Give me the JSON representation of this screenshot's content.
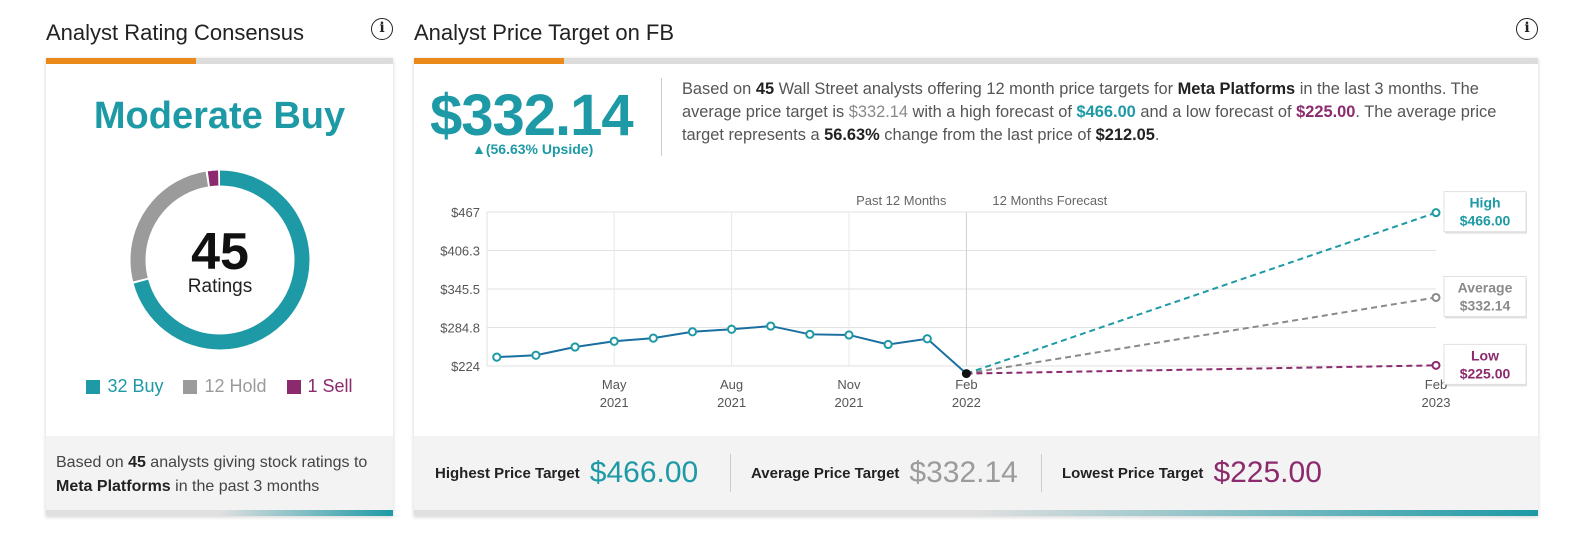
{
  "rating_panel": {
    "title": "Analyst Rating Consensus",
    "info_icon": "info-icon",
    "consensus": "Moderate Buy",
    "total": "45",
    "total_label": "Ratings",
    "legend": [
      {
        "label": "32 Buy",
        "count": 32,
        "color": "#1d9aa5"
      },
      {
        "label": "12 Hold",
        "count": 12,
        "color": "#9b9b9b"
      },
      {
        "label": "1 Sell",
        "count": 1,
        "color": "#8c2a6e"
      }
    ],
    "footer": {
      "pre": "Based on ",
      "count": "45",
      "mid": " analysts giving stock ratings to ",
      "company": "Meta Platforms",
      "post": " in the past 3 months"
    }
  },
  "target_panel": {
    "title": "Analyst Price Target on FB",
    "info_icon": "info-icon",
    "price": "$332.14",
    "upside": "▲(56.63% Upside)",
    "summary": {
      "s1": "Based on ",
      "n": "45",
      "s2": " Wall Street analysts offering 12 month price targets for ",
      "company": "Meta Platforms",
      "s3": " in the last 3 months. The average price target is ",
      "avg": "$332.14",
      "s4": " with a high forecast of ",
      "high": "$466.00",
      "s5": " and a low forecast of ",
      "low": "$225.00",
      "s6": ". The average price target represents a ",
      "pct": "56.63%",
      "s7": " change from the last price of ",
      "last": "$212.05",
      "s8": "."
    },
    "footer": {
      "highest_label": "Highest Price Target",
      "highest_value": "$466.00",
      "average_label": "Average Price Target",
      "average_value": "$332.14",
      "lowest_label": "Lowest Price Target",
      "lowest_value": "$225.00"
    }
  },
  "chart_data": [
    {
      "type": "pie",
      "categories": [
        "Buy",
        "Hold",
        "Sell"
      ],
      "values": [
        32,
        12,
        1
      ],
      "colors": [
        "#1d9aa5",
        "#9b9b9b",
        "#8c2a6e"
      ]
    },
    {
      "type": "line",
      "section_labels": [
        "Past 12 Months",
        "12 Months Forecast"
      ],
      "y_ticks": [
        "$467",
        "$406.3",
        "$345.5",
        "$284.8",
        "$224"
      ],
      "ylim": [
        224,
        467
      ],
      "x_ticks": [
        {
          "month": "May",
          "year": "2021",
          "t": 3
        },
        {
          "month": "Aug",
          "year": "2021",
          "t": 6
        },
        {
          "month": "Nov",
          "year": "2021",
          "t": 9
        },
        {
          "month": "Feb",
          "year": "2022",
          "t": 12
        },
        {
          "month": "Feb",
          "year": "2023",
          "t": 24
        }
      ],
      "history": {
        "t": [
          0,
          1,
          2,
          3,
          4,
          5,
          6,
          7,
          8,
          9,
          10,
          11,
          12
        ],
        "values": [
          238,
          241,
          254,
          263,
          268,
          278,
          282,
          287,
          274,
          273,
          258,
          267,
          212.05
        ],
        "color": "#1a6fa0"
      },
      "forecasts": [
        {
          "name": "High",
          "value": 466.0,
          "label": "$466.00",
          "color": "#1d9aa5"
        },
        {
          "name": "Average",
          "value": 332.14,
          "label": "$332.14",
          "color": "#8a8a8a"
        },
        {
          "name": "Low",
          "value": 225.0,
          "label": "$225.00",
          "color": "#8c2a6e"
        }
      ]
    }
  ]
}
